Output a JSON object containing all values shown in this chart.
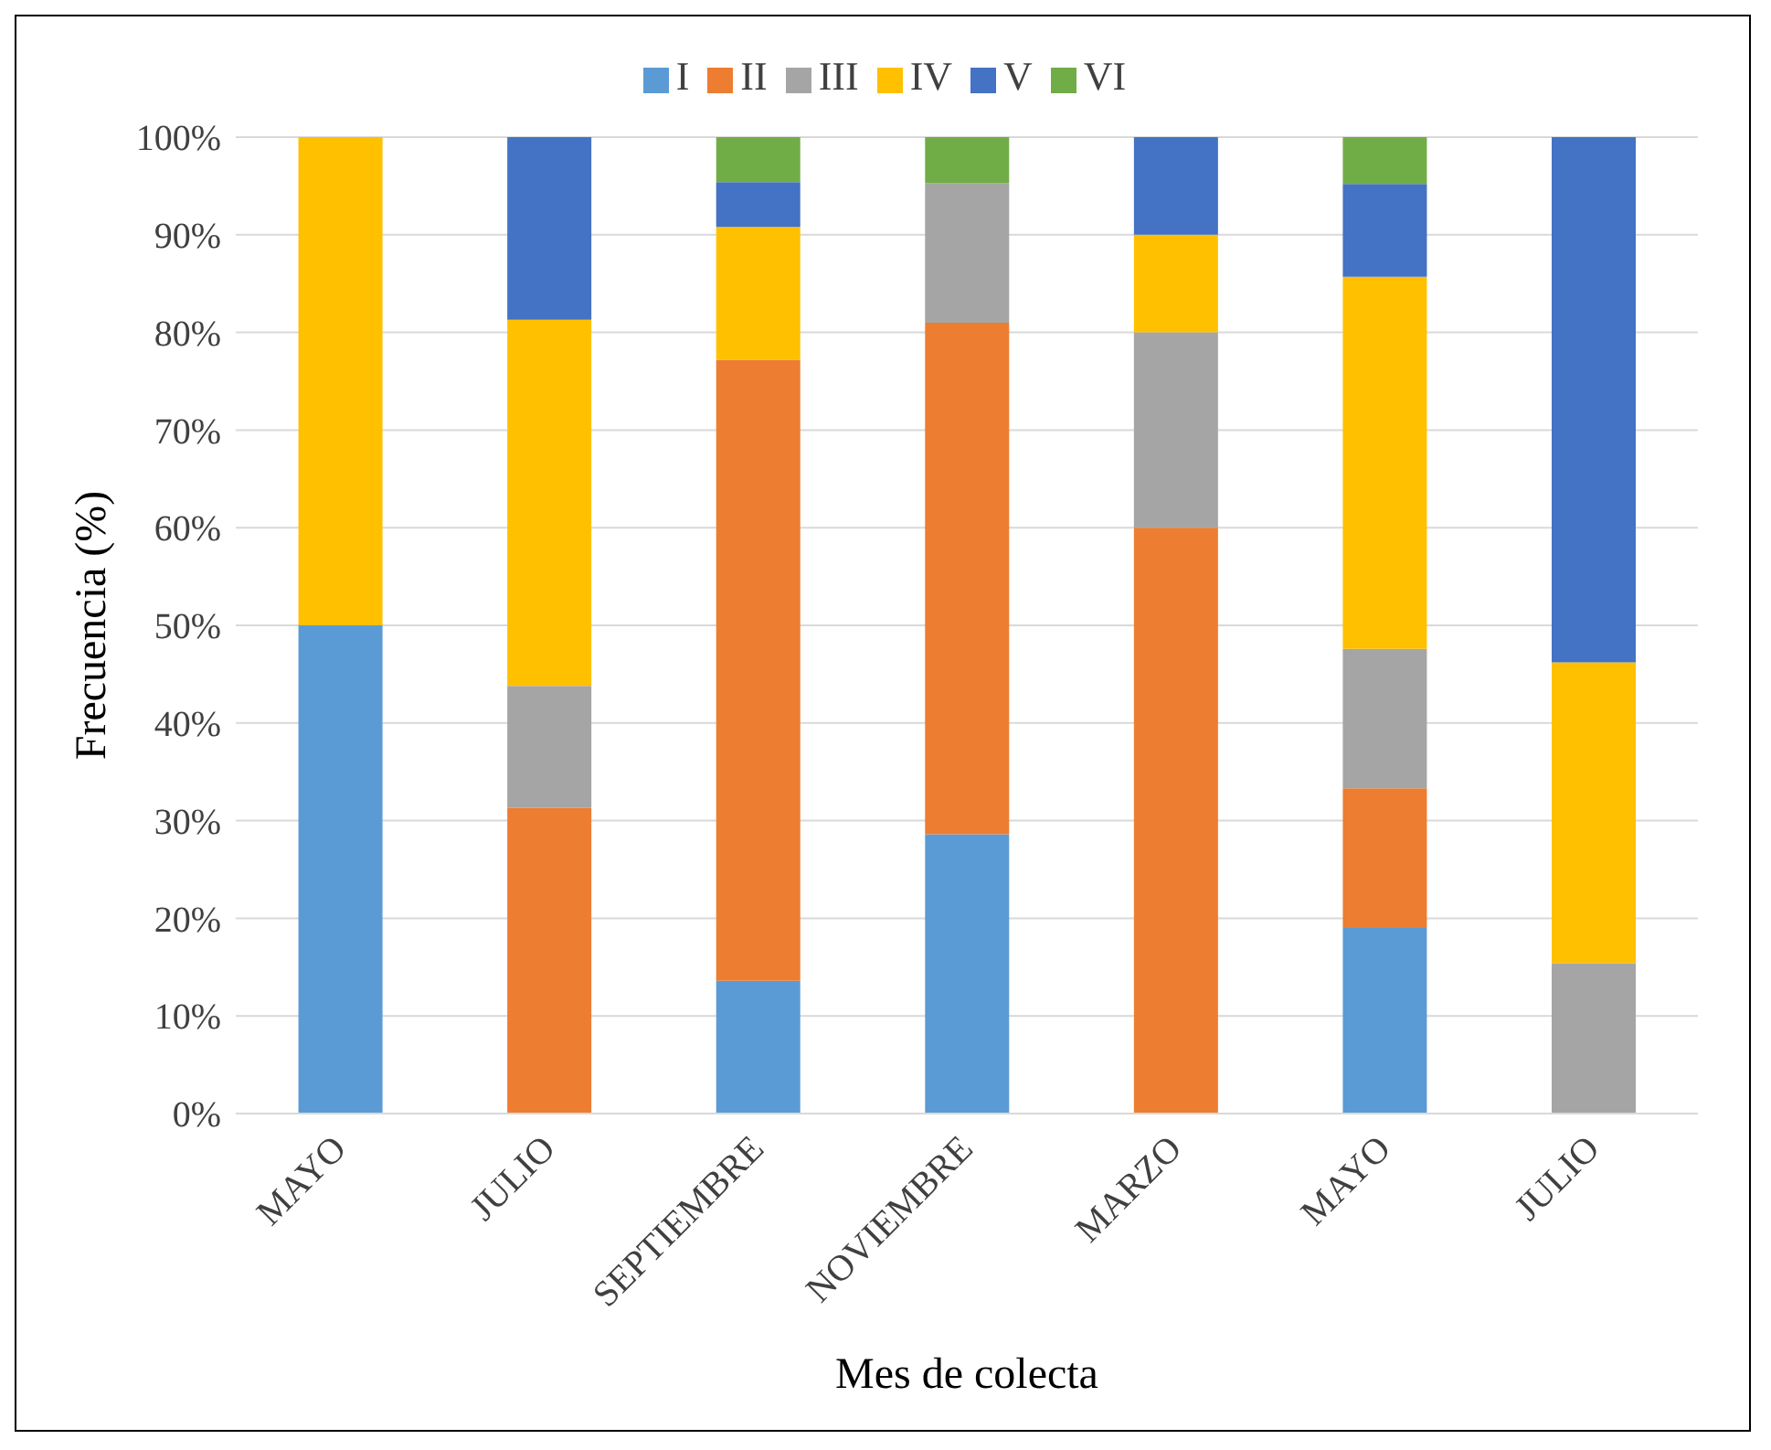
{
  "chart_data": {
    "type": "bar",
    "stacked": true,
    "xlabel": "Mes de colecta",
    "ylabel": "Frecuencia (%)",
    "categories": [
      "MAYO",
      "JULIO",
      "SEPTIEMBRE",
      "NOVIEMBRE",
      "MARZO",
      "MAYO",
      "JULIO"
    ],
    "series": [
      {
        "name": "I",
        "color": "#5b9bd5",
        "values": [
          50,
          0,
          13.6,
          28.6,
          0,
          19.0,
          0
        ]
      },
      {
        "name": "II",
        "color": "#ed7d31",
        "values": [
          0,
          31.3,
          63.6,
          52.4,
          60,
          14.3,
          0
        ]
      },
      {
        "name": "III",
        "color": "#a5a5a5",
        "values": [
          0,
          12.5,
          0,
          14.3,
          20,
          14.3,
          15.4
        ]
      },
      {
        "name": "IV",
        "color": "#ffc000",
        "values": [
          50,
          37.5,
          13.6,
          0,
          10,
          38.1,
          30.8
        ]
      },
      {
        "name": "V",
        "color": "#4472c4",
        "values": [
          0,
          18.7,
          4.6,
          0,
          10,
          9.5,
          53.8
        ]
      },
      {
        "name": "VI",
        "color": "#70ad47",
        "values": [
          0,
          0,
          4.6,
          4.7,
          0,
          4.8,
          0
        ]
      }
    ],
    "ylim": [
      0,
      100
    ],
    "yticks": [
      {
        "value": 0,
        "label": "0%"
      },
      {
        "value": 10,
        "label": "10%"
      },
      {
        "value": 20,
        "label": "20%"
      },
      {
        "value": 30,
        "label": "30%"
      },
      {
        "value": 40,
        "label": "40%"
      },
      {
        "value": 50,
        "label": "50%"
      },
      {
        "value": 60,
        "label": "60%"
      },
      {
        "value": 70,
        "label": "70%"
      },
      {
        "value": 80,
        "label": "80%"
      },
      {
        "value": 90,
        "label": "90%"
      },
      {
        "value": 100,
        "label": "100%"
      }
    ],
    "grid": "y",
    "legend": "top"
  }
}
